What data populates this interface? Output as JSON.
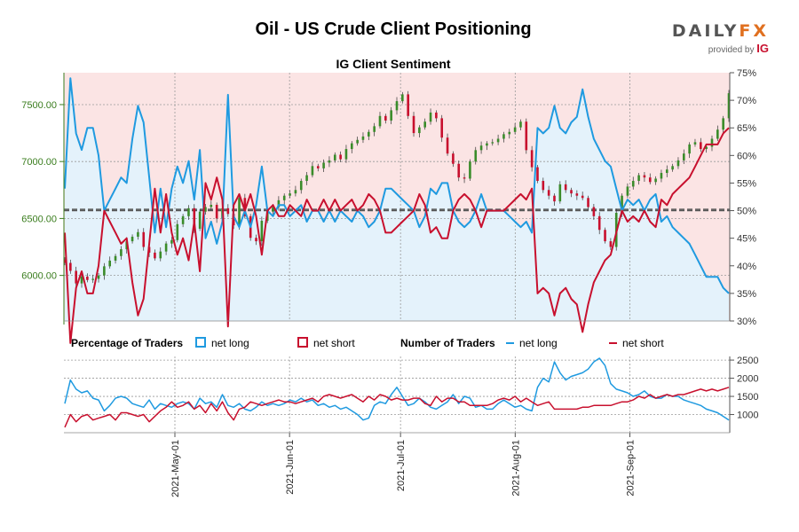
{
  "title": "Oil - US Crude Client Positioning",
  "subtitle": "IG Client Sentiment",
  "logo": {
    "main_a": "DAILY",
    "main_b": "FX",
    "provided_by": "provided by",
    "brand": "IG"
  },
  "legend": {
    "pct_label": "Percentage of Traders",
    "pct_long": "net long",
    "pct_short": "net short",
    "num_label": "Number of Traders",
    "num_long": "net long",
    "num_short": "net short"
  },
  "colors": {
    "long": "#1f9ae0",
    "short": "#c8102e",
    "long_fill": "#e4f2fb",
    "short_fill": "#fbe4e4",
    "candle_up": "#3a8c2a",
    "candle_down": "#c8102e",
    "price_axis": "#3a7d1e"
  },
  "chart_data": [
    {
      "type": "line",
      "name": "Price and Percentage of Traders",
      "x_ticks": [
        "2021-May-01",
        "2021-Jun-01",
        "2021-Jul-01",
        "2021-Aug-01",
        "2021-Sep-01"
      ],
      "x_range": [
        "2021-04-01",
        "2021-09-28"
      ],
      "y_left": {
        "ticks": [
          "6000.00",
          "6500.00",
          "7000.00",
          "7500.00"
        ],
        "range": [
          5600,
          7780
        ]
      },
      "y_right": {
        "ticks": [
          "30%",
          "35%",
          "40%",
          "45%",
          "50%",
          "55%",
          "60%",
          "65%",
          "70%",
          "75%"
        ],
        "range": [
          30,
          75
        ]
      },
      "reference_lines": {
        "price": 6580,
        "percent": 50
      },
      "price_close": [
        6110,
        6040,
        5930,
        5990,
        5960,
        5970,
        6000,
        6080,
        6130,
        6170,
        6230,
        6300,
        6340,
        6380,
        6250,
        6200,
        6150,
        6210,
        6280,
        6310,
        6450,
        6520,
        6590,
        6410,
        6560,
        6600,
        6620,
        6500,
        6590,
        6540,
        6440,
        6680,
        6520,
        6330,
        6300,
        6480,
        6560,
        6600,
        6660,
        6700,
        6720,
        6750,
        6830,
        6880,
        6960,
        6940,
        6990,
        7010,
        7060,
        7020,
        7110,
        7160,
        7190,
        7220,
        7260,
        7310,
        7400,
        7360,
        7450,
        7530,
        7590,
        7400,
        7250,
        7300,
        7350,
        7430,
        7380,
        7210,
        7070,
        6980,
        6860,
        6850,
        7000,
        7100,
        7140,
        7160,
        7170,
        7200,
        7240,
        7260,
        7300,
        7350,
        7100,
        6950,
        6830,
        6750,
        6700,
        6650,
        6800,
        6750,
        6720,
        6700,
        6680,
        6600,
        6520,
        6400,
        6300,
        6250,
        6550,
        6700,
        6780,
        6830,
        6880,
        6860,
        6820,
        6850,
        6900,
        6930,
        6960,
        7010,
        7070,
        7150,
        7170,
        7110,
        7130,
        7200,
        7280,
        7380,
        7600
      ],
      "net_long_pct": [
        54,
        74,
        64,
        61,
        65,
        65,
        60,
        50,
        52,
        54,
        56,
        55,
        63,
        69,
        66,
        56,
        46,
        54,
        47,
        54,
        58,
        55,
        59,
        52,
        61,
        45,
        48,
        44,
        48,
        71,
        49,
        47,
        50,
        47,
        51,
        58,
        50,
        49,
        51,
        51,
        49,
        50,
        51,
        48,
        50,
        50,
        48,
        50,
        48,
        50,
        49,
        48,
        50,
        49,
        47,
        48,
        50,
        54,
        54,
        53,
        52,
        51,
        50,
        47,
        49,
        54,
        53,
        55,
        55,
        50,
        48,
        47,
        48,
        50,
        53,
        50,
        50,
        50,
        50,
        49,
        48,
        47,
        48,
        46,
        65,
        64,
        65,
        69,
        65,
        64,
        66,
        67,
        72,
        67,
        63,
        61,
        59,
        58,
        54,
        50,
        52,
        51,
        52,
        50,
        52,
        53,
        48,
        49,
        47,
        46,
        45,
        44,
        42,
        40,
        38,
        38,
        38,
        36,
        35
      ],
      "net_short_pct": [
        46,
        26,
        36,
        39,
        35,
        35,
        40,
        50,
        48,
        46,
        44,
        45,
        37,
        31,
        34,
        44,
        54,
        46,
        53,
        46,
        42,
        45,
        41,
        48,
        39,
        55,
        52,
        56,
        52,
        29,
        51,
        53,
        50,
        53,
        49,
        42,
        50,
        51,
        49,
        49,
        51,
        50,
        49,
        52,
        50,
        50,
        52,
        50,
        52,
        50,
        51,
        52,
        50,
        51,
        53,
        52,
        50,
        46,
        46,
        47,
        48,
        49,
        50,
        53,
        51,
        46,
        47,
        45,
        45,
        50,
        52,
        53,
        52,
        50,
        47,
        50,
        50,
        50,
        50,
        51,
        52,
        53,
        52,
        54,
        35,
        36,
        35,
        31,
        35,
        36,
        34,
        33,
        28,
        33,
        37,
        39,
        41,
        42,
        46,
        50,
        48,
        49,
        48,
        50,
        48,
        47,
        52,
        51,
        53,
        54,
        55,
        56,
        58,
        60,
        62,
        62,
        62,
        64,
        65
      ]
    },
    {
      "type": "line",
      "name": "Number of Traders",
      "y_right": {
        "ticks": [
          "1000",
          "1500",
          "2000",
          "2500"
        ],
        "range": [
          500,
          2600
        ]
      },
      "net_long": [
        1300,
        1950,
        1700,
        1600,
        1650,
        1450,
        1400,
        1100,
        1250,
        1450,
        1500,
        1450,
        1300,
        1250,
        1200,
        1400,
        1150,
        1300,
        1250,
        1200,
        1300,
        1350,
        1300,
        1150,
        1450,
        1300,
        1350,
        1200,
        1550,
        1250,
        1200,
        1300,
        1150,
        1100,
        1200,
        1350,
        1250,
        1300,
        1250,
        1300,
        1400,
        1350,
        1450,
        1350,
        1400,
        1250,
        1300,
        1200,
        1250,
        1150,
        1200,
        1100,
        1000,
        850,
        900,
        1250,
        1350,
        1300,
        1550,
        1750,
        1500,
        1250,
        1300,
        1450,
        1350,
        1200,
        1150,
        1250,
        1350,
        1550,
        1300,
        1500,
        1450,
        1200,
        1250,
        1150,
        1150,
        1300,
        1400,
        1300,
        1200,
        1250,
        1150,
        1100,
        1750,
        2000,
        1900,
        2450,
        2150,
        1950,
        2050,
        2100,
        2150,
        2250,
        2450,
        2550,
        2350,
        1850,
        1700,
        1650,
        1600,
        1500,
        1550,
        1650,
        1500,
        1450,
        1450,
        1550,
        1500,
        1500,
        1400,
        1350,
        1300,
        1250,
        1150,
        1100,
        1050,
        950,
        850
      ],
      "net_short": [
        650,
        1000,
        800,
        950,
        1000,
        850,
        900,
        950,
        1000,
        850,
        1050,
        1050,
        1000,
        950,
        1000,
        800,
        950,
        1100,
        1200,
        1350,
        1200,
        1250,
        1350,
        1150,
        1250,
        1050,
        1300,
        1100,
        1350,
        1050,
        850,
        1150,
        1200,
        1350,
        1300,
        1250,
        1300,
        1350,
        1400,
        1350,
        1350,
        1300,
        1350,
        1400,
        1450,
        1350,
        1500,
        1550,
        1500,
        1450,
        1500,
        1550,
        1450,
        1350,
        1500,
        1400,
        1550,
        1500,
        1400,
        1450,
        1400,
        1400,
        1450,
        1450,
        1300,
        1250,
        1500,
        1350,
        1450,
        1450,
        1350,
        1350,
        1250,
        1250,
        1250,
        1250,
        1300,
        1400,
        1450,
        1400,
        1500,
        1350,
        1450,
        1350,
        1250,
        1300,
        1350,
        1150,
        1150,
        1150,
        1150,
        1150,
        1200,
        1200,
        1250,
        1250,
        1250,
        1250,
        1300,
        1350,
        1350,
        1400,
        1500,
        1450,
        1550,
        1450,
        1500,
        1550,
        1500,
        1550,
        1550,
        1600,
        1650,
        1700,
        1650,
        1700,
        1650,
        1700,
        1750
      ]
    }
  ]
}
